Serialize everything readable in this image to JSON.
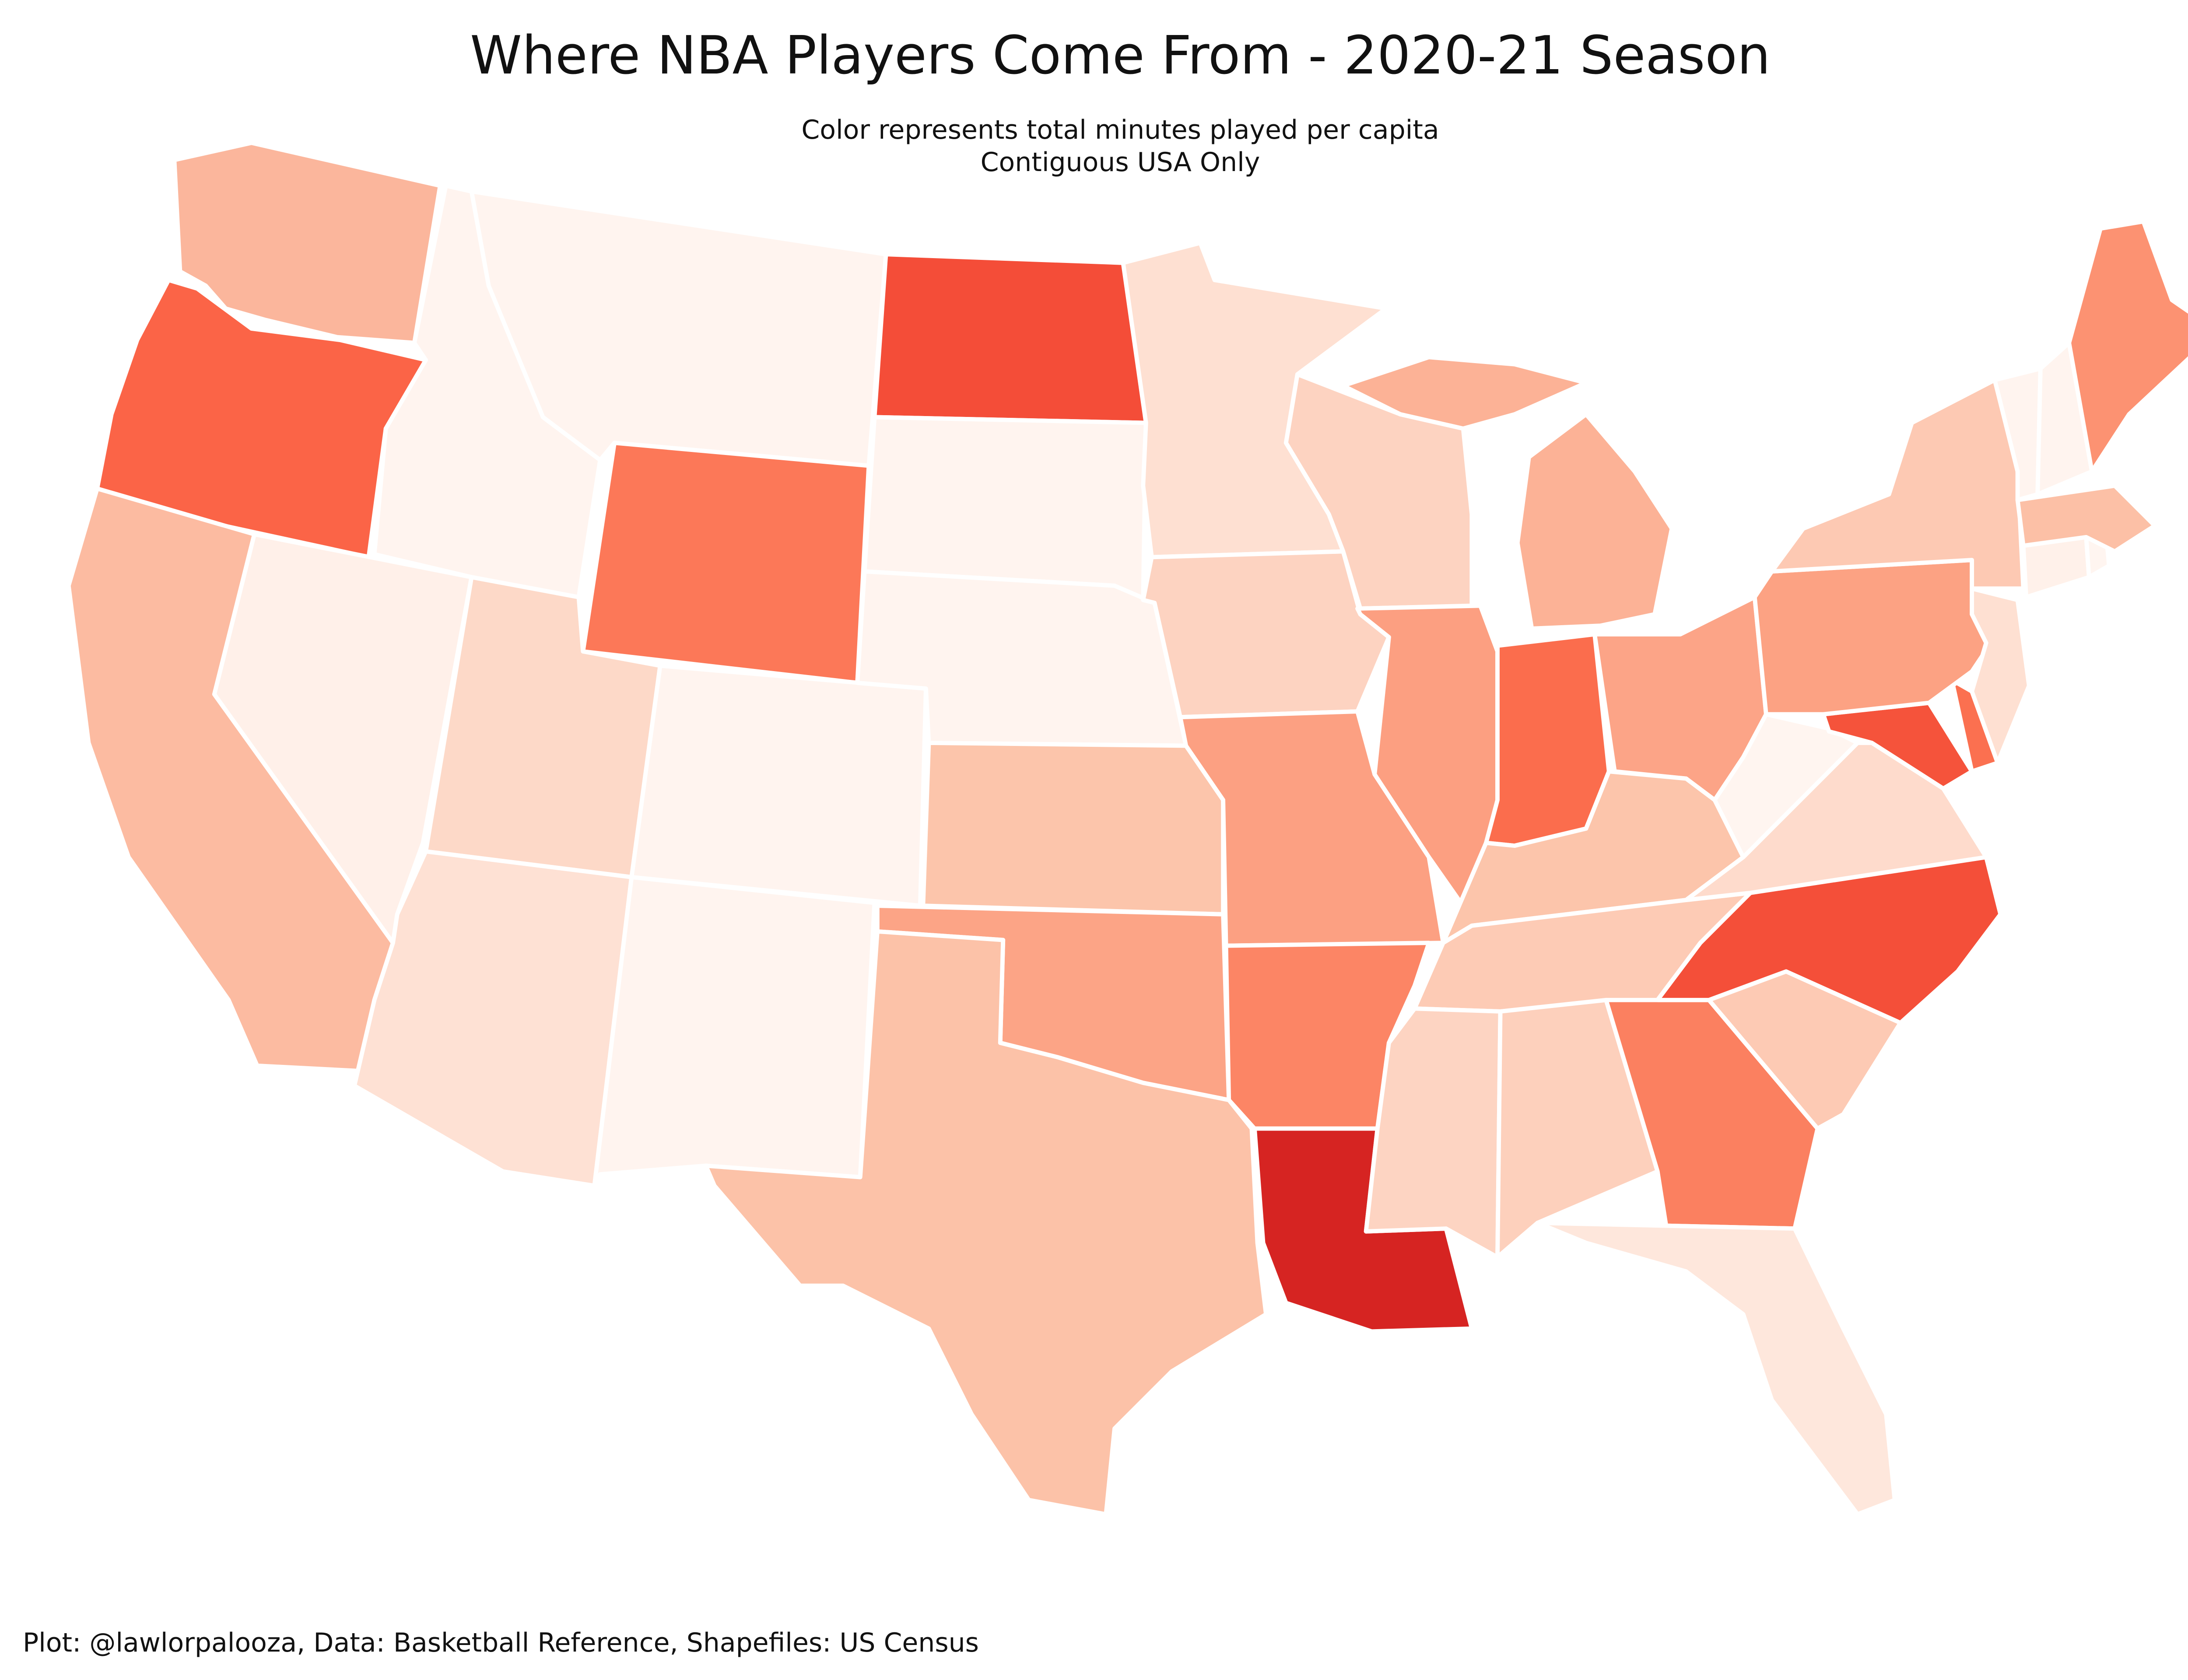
{
  "title": "Where NBA Players Come From - 2020-21 Season",
  "subtitle": [
    "Color represents total minutes played per capita",
    "Contiguous USA Only"
  ],
  "credit": "Plot: @lawlorpalooza, Data: Basketball Reference, Shapefiles: US Census",
  "color_scale": {
    "low": "#fff5f0",
    "high": "#d42020"
  },
  "map_data": {
    "type": "choropleth",
    "region": "Contiguous USA",
    "states": [
      {
        "id": "WA",
        "fill": "#fbb69c"
      },
      {
        "id": "OR",
        "fill": "#fb6447"
      },
      {
        "id": "CA",
        "fill": "#fcbba1"
      },
      {
        "id": "ID",
        "fill": "#fff4ef"
      },
      {
        "id": "NV",
        "fill": "#fff0e9"
      },
      {
        "id": "MT",
        "fill": "#fff4ef"
      },
      {
        "id": "WY",
        "fill": "#fc7858"
      },
      {
        "id": "UT",
        "fill": "#fdd9c8"
      },
      {
        "id": "AZ",
        "fill": "#fee1d4"
      },
      {
        "id": "CO",
        "fill": "#fff4ef"
      },
      {
        "id": "NM",
        "fill": "#fff4ef"
      },
      {
        "id": "ND",
        "fill": "#f44d38"
      },
      {
        "id": "SD",
        "fill": "#fff4ef"
      },
      {
        "id": "NE",
        "fill": "#fff4ef"
      },
      {
        "id": "KS",
        "fill": "#fcc5ab"
      },
      {
        "id": "OK",
        "fill": "#fca486"
      },
      {
        "id": "TX",
        "fill": "#fcc2a8"
      },
      {
        "id": "MN",
        "fill": "#fee0d2"
      },
      {
        "id": "IA",
        "fill": "#fdd3c1"
      },
      {
        "id": "MO",
        "fill": "#fca082"
      },
      {
        "id": "AR",
        "fill": "#fc8565"
      },
      {
        "id": "LA",
        "fill": "#d62422"
      },
      {
        "id": "WI",
        "fill": "#fdd3c1"
      },
      {
        "id": "IL",
        "fill": "#fc9f81"
      },
      {
        "id": "MI",
        "fill": "#fcb296"
      },
      {
        "id": "IN",
        "fill": "#fb6d4d"
      },
      {
        "id": "OH",
        "fill": "#fca487"
      },
      {
        "id": "KY",
        "fill": "#fcc5ab"
      },
      {
        "id": "TN",
        "fill": "#fdcbb5"
      },
      {
        "id": "MS",
        "fill": "#fdd4c2"
      },
      {
        "id": "AL",
        "fill": "#fdd0bc"
      },
      {
        "id": "GA",
        "fill": "#fb8060"
      },
      {
        "id": "FL",
        "fill": "#fee7dc"
      },
      {
        "id": "SC",
        "fill": "#fdcab4"
      },
      {
        "id": "NC",
        "fill": "#f44f39"
      },
      {
        "id": "VA",
        "fill": "#fedbcc"
      },
      {
        "id": "WV",
        "fill": "#fff5f0"
      },
      {
        "id": "MD",
        "fill": "#f5533b"
      },
      {
        "id": "DE",
        "fill": "#fb7050"
      },
      {
        "id": "PA",
        "fill": "#fca283"
      },
      {
        "id": "NJ",
        "fill": "#fee0d2"
      },
      {
        "id": "NY",
        "fill": "#fdc9b3"
      },
      {
        "id": "CT",
        "fill": "#fff1ea"
      },
      {
        "id": "RI",
        "fill": "#fff5f0"
      },
      {
        "id": "MA",
        "fill": "#fcc0a6"
      },
      {
        "id": "VT",
        "fill": "#fff4ef"
      },
      {
        "id": "NH",
        "fill": "#fff4ef"
      },
      {
        "id": "ME",
        "fill": "#fc9272"
      }
    ]
  }
}
